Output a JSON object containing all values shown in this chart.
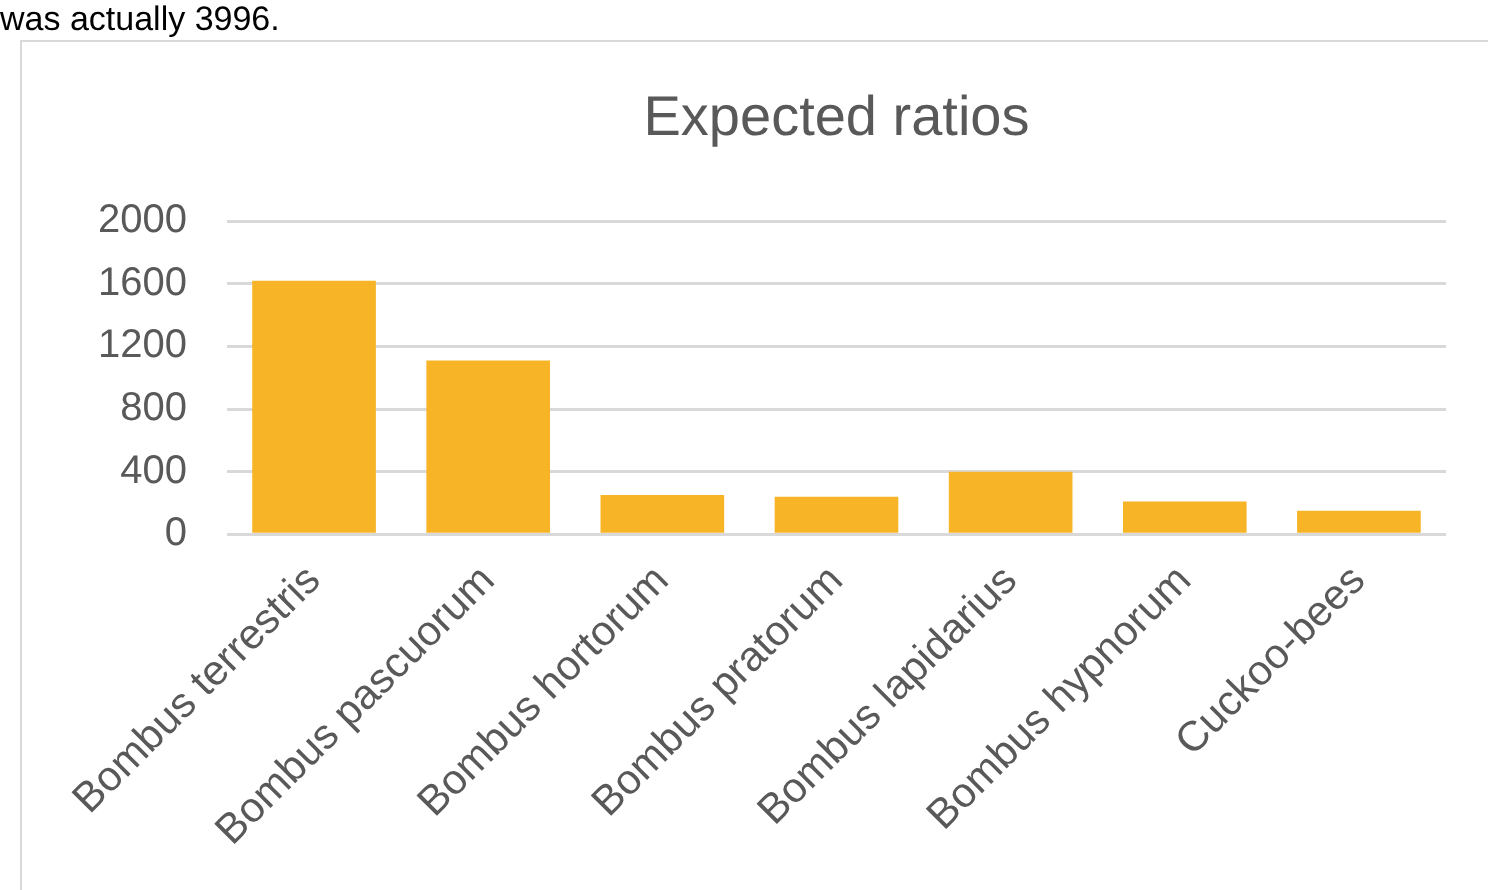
{
  "chart_data": {
    "type": "bar",
    "title": "Expected ratios",
    "categories": [
      "Bombus terrestris",
      "Bombus pascuorum",
      "Bombus hortorum",
      "Bombus pratorum",
      "Bombus lapidarius",
      "Bombus hypnorum",
      "Cuckoo-bees"
    ],
    "values": [
      1620,
      1110,
      250,
      240,
      400,
      210,
      150
    ],
    "color": "#f6b426",
    "ylim": [
      0,
      2000
    ],
    "yticks": [
      0,
      400,
      800,
      1200,
      1600,
      2000
    ],
    "grid": "y",
    "annotations": [
      "was actually 3996."
    ]
  }
}
